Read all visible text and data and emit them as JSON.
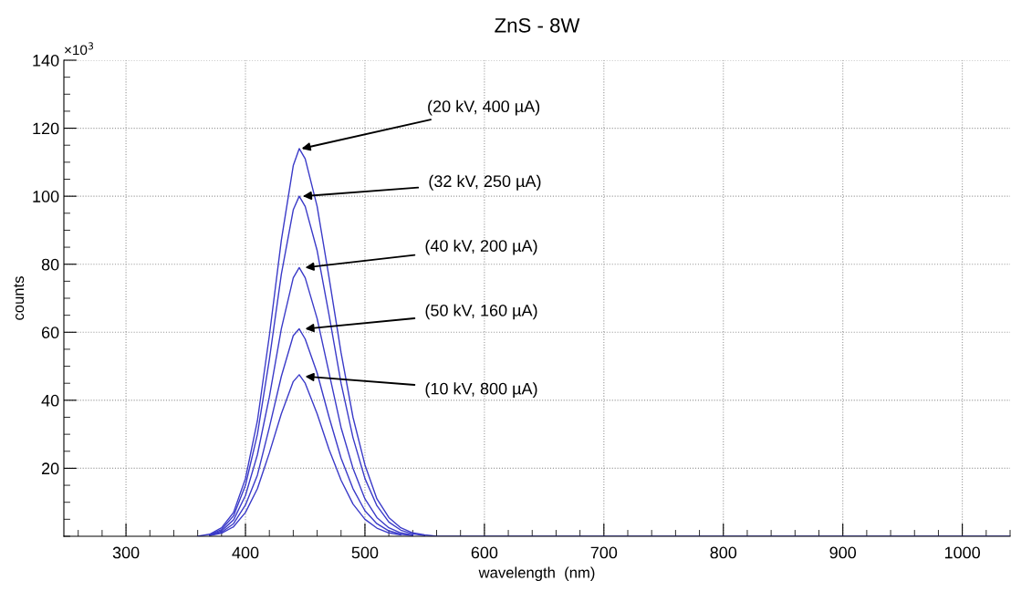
{
  "chart_data": {
    "type": "line",
    "title": "ZnS - 8W",
    "xlabel": "wavelength  (nm)",
    "ylabel": "counts",
    "x": [
      360,
      370,
      380,
      390,
      400,
      410,
      420,
      430,
      440,
      445,
      450,
      460,
      470,
      480,
      490,
      500,
      510,
      520,
      530,
      540,
      550,
      560,
      580,
      1040
    ],
    "series": [
      {
        "color": "#3a3ac8",
        "values": [
          0,
          0.6,
          2.5,
          7,
          17,
          34,
          59,
          87,
          109,
          114,
          111,
          97,
          76,
          54,
          35,
          21,
          11,
          5.5,
          2.5,
          1,
          0.4,
          0,
          0,
          0
        ]
      },
      {
        "color": "#3a3ac8",
        "values": [
          null,
          0.5,
          2,
          6,
          15,
          30,
          52,
          77,
          96,
          100,
          97,
          84,
          65,
          45,
          29,
          17,
          9,
          4.2,
          1.8,
          0.7,
          0.2,
          null,
          null,
          null
        ]
      },
      {
        "color": "#3a3ac8",
        "values": [
          null,
          0.4,
          1.6,
          4.8,
          12,
          24,
          41,
          61,
          76,
          79,
          76,
          64,
          48,
          32,
          20,
          11,
          5.5,
          2.5,
          1,
          0.4,
          null,
          null,
          null,
          null
        ]
      },
      {
        "color": "#3a3ac8",
        "values": [
          null,
          0.3,
          1.2,
          3.7,
          9.2,
          18,
          32,
          47,
          59,
          61,
          58,
          48,
          35,
          23,
          14,
          7.5,
          3.7,
          1.6,
          0.6,
          0.2,
          null,
          null,
          null,
          null
        ]
      },
      {
        "color": "#3a3ac8",
        "values": [
          null,
          0.2,
          0.9,
          2.8,
          7,
          14,
          24.5,
          36,
          45.5,
          47.5,
          45,
          36,
          25.5,
          16.5,
          9.5,
          5,
          2.4,
          1,
          0.4,
          null,
          null,
          null,
          null,
          null
        ]
      }
    ],
    "xlim": [
      248,
      1040
    ],
    "ylim": [
      0,
      140
    ],
    "xticks": [
      300,
      400,
      500,
      600,
      700,
      800,
      900,
      1000
    ],
    "yticks": [
      20,
      40,
      60,
      80,
      100,
      120,
      140
    ],
    "grid": true,
    "marker": "none",
    "line_style": "solid",
    "legend": false,
    "annotations": [
      {
        "text": "(20 kV, 400 µA)",
        "x": 447,
        "y": 114
      },
      {
        "text": "(32 kV, 250 µA)",
        "x": 448,
        "y": 100
      },
      {
        "text": "(40 kV, 200 µA)",
        "x": 450,
        "y": 79
      },
      {
        "text": "(50 kV, 160 µA)",
        "x": 450,
        "y": 61
      },
      {
        "text": "(10 kV, 800 µA)",
        "x": 450,
        "y": 47
      },
      "×10$^{3}$"
    ]
  }
}
